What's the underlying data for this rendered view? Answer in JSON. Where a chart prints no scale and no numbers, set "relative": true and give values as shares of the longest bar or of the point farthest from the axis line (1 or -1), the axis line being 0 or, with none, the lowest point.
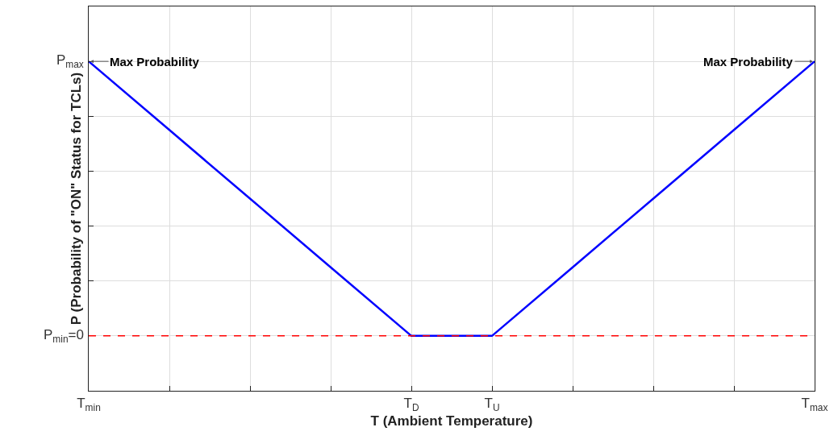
{
  "chart_data": {
    "type": "line",
    "xlabel": "T (Ambient Temperature)",
    "ylabel": "P (Probability of \"ON\" Status for TCLs)",
    "categories": [
      "T$_{min}$",
      null,
      null,
      null,
      "T$_{D}$",
      "T$_{U}$",
      null,
      null,
      null,
      "T$_{max}$"
    ],
    "series": [
      {
        "color": "#0000ff",
        "values": [
          1,
          0.75,
          0.5,
          0.25,
          0,
          0,
          0.25,
          0.5,
          0.75,
          1
        ]
      }
    ],
    "relative": true,
    "ref_lines": [
      {
        "axis": "y",
        "value": 0,
        "color": "#ff0000",
        "line_style": "dashed"
      }
    ],
    "annotations": [
      {
        "text": "Max Probability",
        "x": "T$_{min}$",
        "y": 1
      },
      {
        "text": "Max Probability",
        "x": "T$_{max}$",
        "y": 1
      },
      "P$_{max}$",
      "P$_{min}$=0"
    ],
    "grid": true,
    "legend": false,
    "marker": "none",
    "line_style": "solid"
  }
}
